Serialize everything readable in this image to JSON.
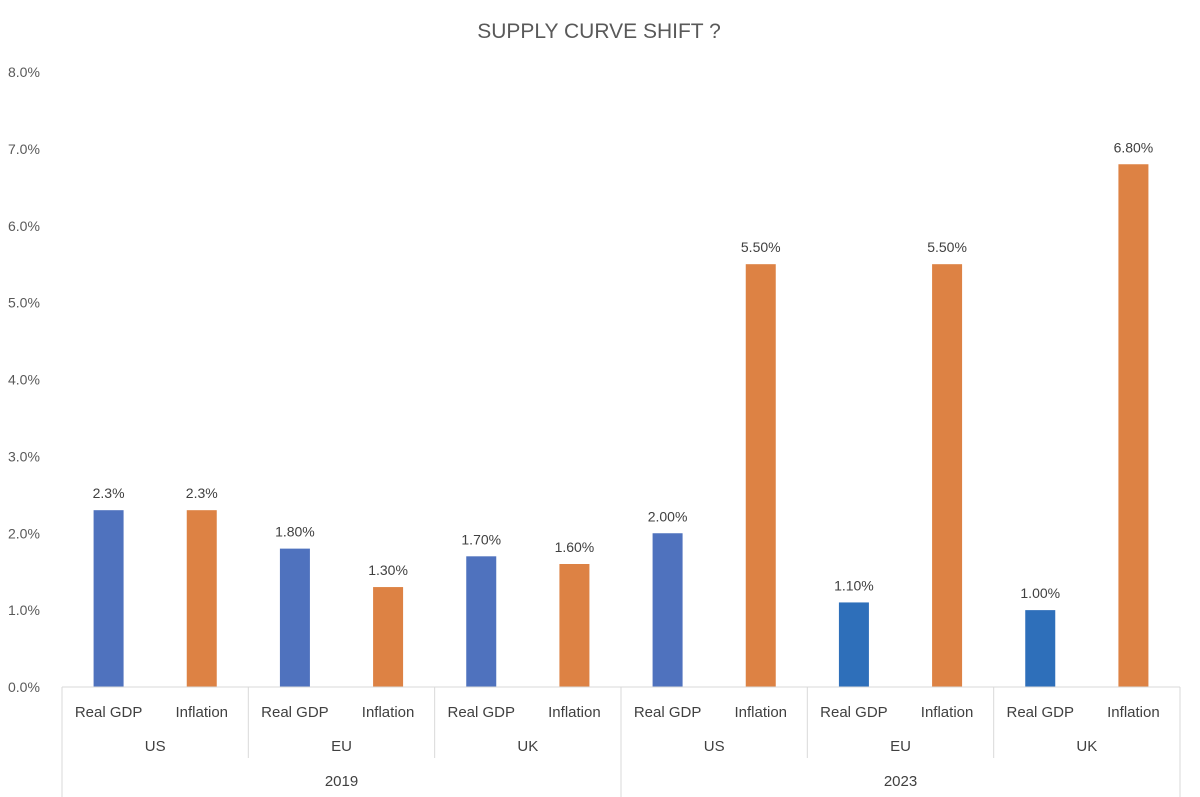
{
  "chart_data": {
    "type": "bar",
    "title": "SUPPLY CURVE SHIFT ?",
    "xlabel": "",
    "ylabel": "",
    "ylim": [
      0,
      8
    ],
    "yticks": [
      "0.0%",
      "1.0%",
      "2.0%",
      "3.0%",
      "4.0%",
      "5.0%",
      "6.0%",
      "7.0%",
      "8.0%"
    ],
    "grid": false,
    "legend": "none",
    "years": [
      "2019",
      "2023"
    ],
    "regions": [
      "US",
      "EU",
      "UK",
      "US",
      "EU",
      "UK"
    ],
    "categories": [
      "Real GDP",
      "Inflation",
      "Real GDP",
      "Inflation",
      "Real GDP",
      "Inflation",
      "Real GDP",
      "Inflation",
      "Real GDP",
      "Inflation",
      "Real GDP",
      "Inflation"
    ],
    "values": [
      2.3,
      2.3,
      1.8,
      1.3,
      1.7,
      1.6,
      2.0,
      5.5,
      1.1,
      5.5,
      1.0,
      6.8
    ],
    "data_labels": [
      "2.3%",
      "2.3%",
      "1.80%",
      "1.30%",
      "1.70%",
      "1.60%",
      "2.00%",
      "5.50%",
      "1.10%",
      "5.50%",
      "1.00%",
      "6.80%"
    ],
    "colors": {
      "real_gdp": "#4f72be",
      "real_gdp_2023_eu_uk": "#2e6fba",
      "inflation": "#dd8244"
    }
  }
}
